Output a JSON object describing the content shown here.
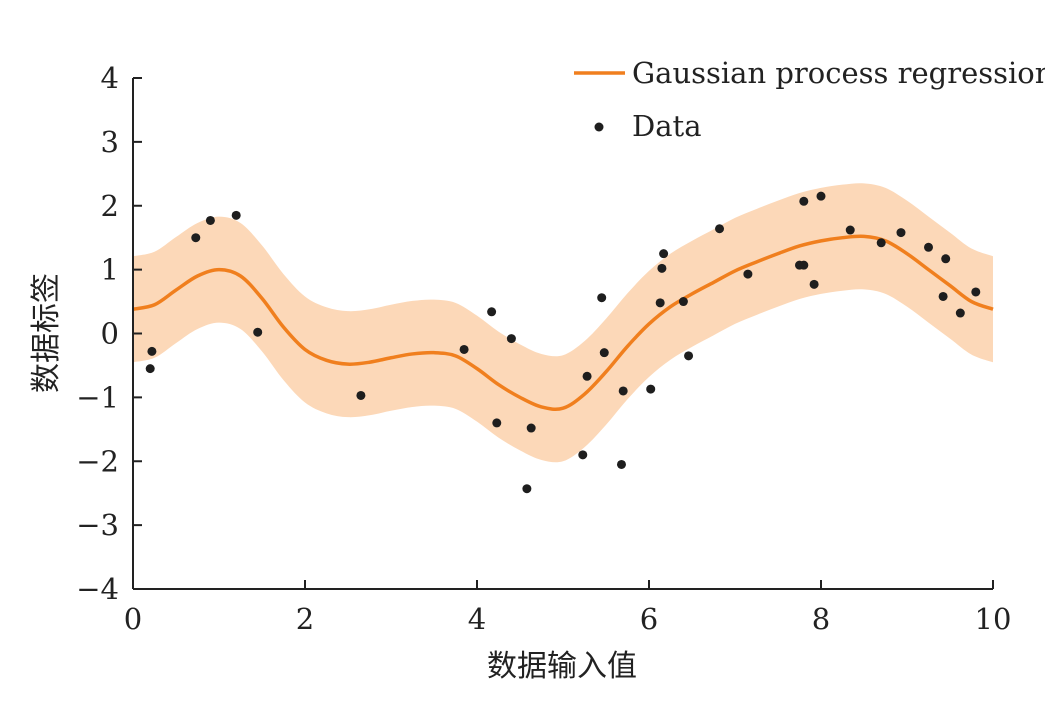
{
  "chart_data": {
    "type": "line",
    "title": "",
    "xlabel": "数据输入值",
    "ylabel": "数据标签",
    "xlim": [
      0,
      10
    ],
    "ylim": [
      -4,
      4
    ],
    "x_ticks": [
      0,
      2,
      4,
      6,
      8,
      10
    ],
    "x_tick_labels": [
      "0",
      "2",
      "4",
      "6",
      "8",
      "10"
    ],
    "y_ticks": [
      4,
      3,
      2,
      1,
      0,
      -1,
      -2,
      -3,
      -4
    ],
    "y_tick_labels": [
      "4",
      "3",
      "2",
      "1",
      "0",
      "−1",
      "−2",
      "−3",
      "−4"
    ],
    "grid": false,
    "legend_position": "top-right",
    "colors": {
      "line": "#f07f1e",
      "band": "#fcd8b8",
      "points": "#1e1e1e",
      "axis": "#222222"
    },
    "series": [
      {
        "name": "Gaussian process regression",
        "kind": "line",
        "x": [
          0,
          0.25,
          0.5,
          0.75,
          1.0,
          1.25,
          1.5,
          1.75,
          2.0,
          2.25,
          2.5,
          2.75,
          3.0,
          3.25,
          3.5,
          3.75,
          4.0,
          4.25,
          4.5,
          4.75,
          5.0,
          5.25,
          5.5,
          5.75,
          6.0,
          6.25,
          6.5,
          6.75,
          7.0,
          7.25,
          7.5,
          7.75,
          8.0,
          8.25,
          8.5,
          8.75,
          9.0,
          9.25,
          9.5,
          9.75,
          10.0
        ],
        "y": [
          0.38,
          0.45,
          0.68,
          0.9,
          1.0,
          0.9,
          0.55,
          0.1,
          -0.25,
          -0.42,
          -0.48,
          -0.45,
          -0.38,
          -0.32,
          -0.3,
          -0.35,
          -0.55,
          -0.8,
          -1.0,
          -1.15,
          -1.17,
          -0.95,
          -0.6,
          -0.2,
          0.15,
          0.42,
          0.62,
          0.8,
          0.98,
          1.12,
          1.25,
          1.37,
          1.45,
          1.5,
          1.52,
          1.45,
          1.25,
          1.0,
          0.75,
          0.5,
          0.38
        ],
        "lower": [
          -0.45,
          -0.38,
          -0.15,
          0.07,
          0.17,
          0.07,
          -0.28,
          -0.73,
          -1.08,
          -1.25,
          -1.31,
          -1.28,
          -1.21,
          -1.15,
          -1.13,
          -1.18,
          -1.38,
          -1.63,
          -1.83,
          -1.98,
          -2.0,
          -1.78,
          -1.43,
          -1.03,
          -0.68,
          -0.41,
          -0.21,
          -0.03,
          0.15,
          0.29,
          0.42,
          0.54,
          0.62,
          0.67,
          0.69,
          0.62,
          0.42,
          0.17,
          -0.08,
          -0.33,
          -0.45
        ],
        "upper": [
          1.21,
          1.28,
          1.51,
          1.73,
          1.83,
          1.73,
          1.38,
          0.93,
          0.58,
          0.41,
          0.35,
          0.38,
          0.45,
          0.51,
          0.53,
          0.48,
          0.28,
          0.03,
          -0.17,
          -0.32,
          -0.34,
          -0.12,
          0.23,
          0.63,
          0.98,
          1.25,
          1.45,
          1.63,
          1.81,
          1.95,
          2.08,
          2.2,
          2.28,
          2.33,
          2.35,
          2.28,
          2.08,
          1.83,
          1.58,
          1.33,
          1.21
        ]
      },
      {
        "name": "Data",
        "kind": "scatter",
        "points": [
          [
            0.2,
            -0.55
          ],
          [
            0.22,
            -0.28
          ],
          [
            0.73,
            1.5
          ],
          [
            0.9,
            1.77
          ],
          [
            1.2,
            1.85
          ],
          [
            1.45,
            0.02
          ],
          [
            2.65,
            -0.97
          ],
          [
            3.85,
            -0.25
          ],
          [
            4.17,
            0.34
          ],
          [
            4.23,
            -1.4
          ],
          [
            4.4,
            -0.08
          ],
          [
            4.58,
            -2.43
          ],
          [
            4.63,
            -1.48
          ],
          [
            5.23,
            -1.9
          ],
          [
            5.28,
            -0.67
          ],
          [
            5.45,
            0.56
          ],
          [
            5.48,
            -0.3
          ],
          [
            5.68,
            -2.05
          ],
          [
            5.7,
            -0.9
          ],
          [
            6.02,
            -0.87
          ],
          [
            6.13,
            0.48
          ],
          [
            6.15,
            1.02
          ],
          [
            6.17,
            1.25
          ],
          [
            6.4,
            0.5
          ],
          [
            6.46,
            -0.35
          ],
          [
            6.82,
            1.64
          ],
          [
            7.15,
            0.93
          ],
          [
            7.75,
            1.07
          ],
          [
            7.8,
            2.07
          ],
          [
            7.8,
            1.07
          ],
          [
            7.92,
            0.77
          ],
          [
            8.0,
            2.15
          ],
          [
            8.34,
            1.62
          ],
          [
            8.7,
            1.42
          ],
          [
            8.93,
            1.58
          ],
          [
            9.25,
            1.35
          ],
          [
            9.42,
            0.58
          ],
          [
            9.45,
            1.17
          ],
          [
            9.62,
            0.32
          ],
          [
            9.8,
            0.65
          ]
        ]
      }
    ]
  }
}
